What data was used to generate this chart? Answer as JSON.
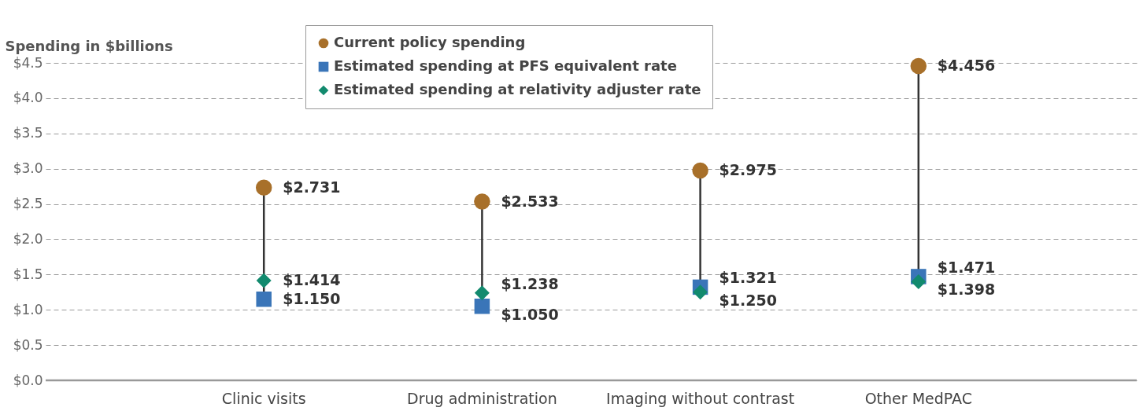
{
  "chart_data": {
    "type": "scatter",
    "ylabel": "Spending in $billions",
    "categories": [
      "Clinic visits",
      "Drug administration",
      "Imaging without contrast",
      "Other MedPAC"
    ],
    "series": [
      {
        "name": "Current policy spending",
        "color": "#a8702a",
        "marker": "circle",
        "values": [
          2.731,
          2.533,
          2.975,
          4.456
        ],
        "value_labels": [
          "$2.731",
          "$2.533",
          "$2.975",
          "$4.456"
        ]
      },
      {
        "name": "Estimated spending at PFS equivalent rate",
        "color": "#3a75b8",
        "marker": "square",
        "values": [
          1.15,
          1.05,
          1.321,
          1.471
        ],
        "value_labels": [
          "$1.150",
          "$1.050",
          "$1.321",
          "$1.471"
        ]
      },
      {
        "name": "Estimated spending at relativity adjuster rate",
        "color": "#128a6e",
        "marker": "diamond",
        "values": [
          1.414,
          1.238,
          1.25,
          1.398
        ],
        "value_labels": [
          "$1.414",
          "$1.238",
          "$1.250",
          "$1.398"
        ]
      }
    ],
    "ylim": [
      0,
      4.5
    ],
    "yticks": [
      {
        "value": 0,
        "label": "$0.0"
      },
      {
        "value": 0.5,
        "label": "$0.5"
      },
      {
        "value": 1,
        "label": "$1.0"
      },
      {
        "value": 1.5,
        "label": "$1.5"
      },
      {
        "value": 2,
        "label": "$2.0"
      },
      {
        "value": 2.5,
        "label": "$2.5"
      },
      {
        "value": 3,
        "label": "$3.0"
      },
      {
        "value": 3.5,
        "label": "$3.5"
      },
      {
        "value": 4,
        "label": "$4.0"
      },
      {
        "value": 4.5,
        "label": "$4.5"
      }
    ],
    "grid": "y",
    "legend": "top"
  }
}
